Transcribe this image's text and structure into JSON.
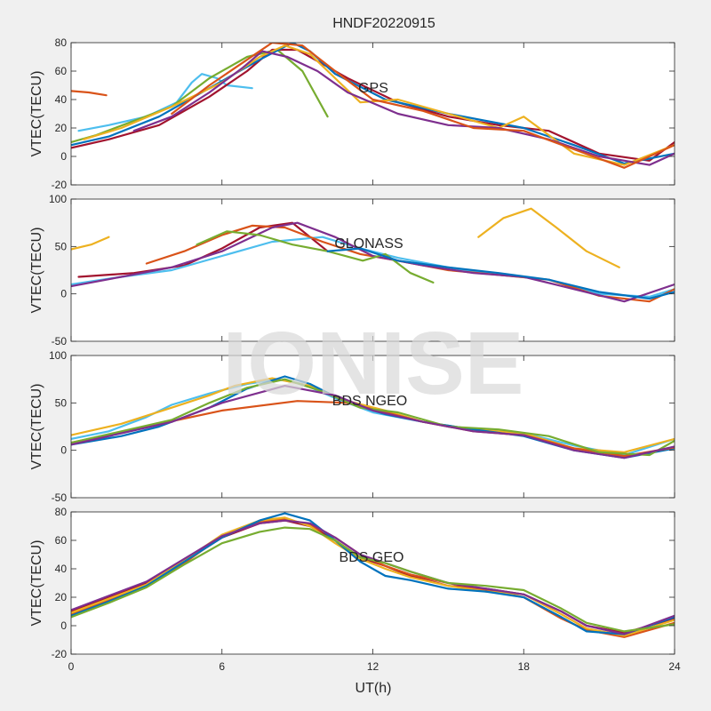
{
  "figure": {
    "title": "HNDF20220915",
    "xlabel": "UT(h)",
    "watermark": "IONISE",
    "background_color": "#f0f0f0",
    "axes_color": "#ffffff",
    "series_colors": [
      "#0072BD",
      "#D95319",
      "#EDB120",
      "#7E2F8E",
      "#77AC30",
      "#4DBEEE",
      "#A2142F"
    ]
  },
  "chart_data": [
    {
      "type": "line",
      "panel_label": "GPS",
      "ylabel": "VTEC(TECU)",
      "xlim": [
        0,
        24
      ],
      "ylim": [
        -20,
        80
      ],
      "xticks": [
        0,
        6,
        12,
        18,
        24
      ],
      "yticks": [
        -20,
        0,
        20,
        40,
        60,
        80
      ],
      "show_xtick_labels": false,
      "series": [
        {
          "color": "#D95319",
          "x": [
            0,
            0.7,
            1.4
          ],
          "y": [
            46,
            45,
            43
          ]
        },
        {
          "color": "#4DBEEE",
          "x": [
            0.3,
            1.5,
            3,
            4.2,
            4.8,
            5.2,
            5.8,
            6.2,
            7.2
          ],
          "y": [
            18,
            22,
            28,
            38,
            52,
            58,
            55,
            50,
            48
          ]
        },
        {
          "color": "#77AC30",
          "x": [
            0,
            1,
            2.5,
            4,
            5.5,
            7,
            8.2,
            9.2,
            10.2
          ],
          "y": [
            10,
            15,
            25,
            35,
            55,
            70,
            75,
            60,
            28
          ]
        },
        {
          "color": "#A2142F",
          "x": [
            0,
            1.5,
            3.5,
            5.5,
            7,
            8,
            9,
            11,
            13,
            15,
            17,
            19,
            21,
            23,
            24
          ],
          "y": [
            6,
            12,
            22,
            42,
            60,
            75,
            75,
            55,
            38,
            28,
            22,
            18,
            2,
            -3,
            10
          ]
        },
        {
          "color": "#0072BD",
          "x": [
            0,
            1.5,
            3.5,
            5.5,
            7.5,
            8.8,
            9.5,
            10.5,
            12.5,
            15,
            18,
            20,
            22,
            24
          ],
          "y": [
            8,
            14,
            28,
            48,
            68,
            80,
            74,
            58,
            40,
            30,
            20,
            8,
            -5,
            2
          ]
        },
        {
          "color": "#EDB120",
          "x": [
            0.5,
            2,
            4,
            6,
            7.5,
            8.5,
            9.5,
            10.5,
            11.5,
            13,
            15,
            17,
            18,
            20,
            22,
            24
          ],
          "y": [
            12,
            20,
            35,
            52,
            70,
            78,
            72,
            55,
            38,
            40,
            30,
            20,
            28,
            2,
            -6,
            8
          ]
        },
        {
          "color": "#7E2F8E",
          "x": [
            2.5,
            4,
            5.5,
            6.8,
            7.6,
            8.6,
            9.8,
            11,
            13,
            15,
            17,
            19,
            21,
            23,
            24
          ],
          "y": [
            18,
            28,
            45,
            62,
            74,
            70,
            60,
            45,
            30,
            22,
            20,
            12,
            0,
            -6,
            2
          ]
        },
        {
          "color": "#D95319",
          "x": [
            4,
            5.5,
            7,
            8,
            9.2,
            10.5,
            12,
            14,
            16,
            18,
            20,
            22,
            24
          ],
          "y": [
            30,
            50,
            68,
            80,
            78,
            60,
            40,
            32,
            20,
            18,
            5,
            -8,
            8
          ]
        }
      ]
    },
    {
      "type": "line",
      "panel_label": "GLONASS",
      "ylabel": "VTEC(TECU)",
      "xlim": [
        0,
        24
      ],
      "ylim": [
        -50,
        100
      ],
      "xticks": [
        0,
        6,
        12,
        18,
        24
      ],
      "yticks": [
        -50,
        0,
        50,
        100
      ],
      "show_xtick_labels": false,
      "series": [
        {
          "color": "#EDB120",
          "x": [
            0,
            0.8,
            1.5
          ],
          "y": [
            47,
            52,
            60
          ]
        },
        {
          "color": "#EDB120",
          "x": [
            16.2,
            17.2,
            18.3,
            19.3,
            20.5,
            21.8
          ],
          "y": [
            60,
            80,
            90,
            70,
            45,
            28
          ]
        },
        {
          "color": "#A2142F",
          "x": [
            0.3,
            2.5,
            4.5,
            6,
            7.5,
            8.8,
            10.2
          ],
          "y": [
            18,
            22,
            30,
            48,
            70,
            75,
            45
          ]
        },
        {
          "color": "#4DBEEE",
          "x": [
            0,
            2,
            4,
            6,
            8,
            10,
            11.5,
            13,
            15,
            17,
            19,
            21,
            23,
            24
          ],
          "y": [
            10,
            18,
            25,
            40,
            55,
            60,
            48,
            38,
            28,
            20,
            15,
            0,
            -3,
            5
          ]
        },
        {
          "color": "#D95319",
          "x": [
            3,
            4.5,
            6,
            7.2,
            8.5,
            10,
            11.5,
            13,
            15,
            17,
            19,
            21,
            23,
            24
          ],
          "y": [
            32,
            45,
            62,
            72,
            70,
            55,
            42,
            35,
            25,
            20,
            15,
            -2,
            -8,
            5
          ]
        },
        {
          "color": "#7E2F8E",
          "x": [
            0,
            2,
            4,
            6,
            8,
            9,
            10.5,
            12,
            14,
            16,
            18,
            20,
            22,
            24
          ],
          "y": [
            8,
            18,
            28,
            45,
            70,
            75,
            60,
            40,
            30,
            22,
            18,
            5,
            -8,
            10
          ]
        },
        {
          "color": "#77AC30",
          "x": [
            5,
            6.2,
            7.5,
            8.8,
            10.2,
            11.6,
            12.5,
            13.5,
            14.4
          ],
          "y": [
            52,
            66,
            62,
            52,
            45,
            35,
            42,
            22,
            12
          ]
        },
        {
          "color": "#0072BD",
          "x": [
            10.2,
            11.5,
            13,
            15,
            17,
            19,
            21,
            23,
            24
          ],
          "y": [
            45,
            48,
            35,
            28,
            22,
            15,
            2,
            -5,
            2
          ]
        }
      ]
    },
    {
      "type": "line",
      "panel_label": "BDS NGEO",
      "ylabel": "VTEC(TECU)",
      "xlim": [
        0,
        24
      ],
      "ylim": [
        -50,
        100
      ],
      "xticks": [
        0,
        6,
        12,
        18,
        24
      ],
      "yticks": [
        -50,
        0,
        50,
        100
      ],
      "show_xtick_labels": false,
      "series": [
        {
          "color": "#4DBEEE",
          "x": [
            0,
            1.5,
            3,
            4,
            5.5,
            7,
            8.2,
            9.2,
            10.5,
            12,
            14,
            16,
            18,
            20,
            22,
            24
          ],
          "y": [
            12,
            20,
            35,
            48,
            60,
            70,
            75,
            70,
            55,
            40,
            30,
            22,
            18,
            5,
            -5,
            12
          ]
        },
        {
          "color": "#EDB120",
          "x": [
            0,
            2,
            4,
            5.5,
            6.5,
            8,
            9.5,
            11,
            12.5,
            14,
            16,
            18,
            20,
            22,
            24
          ],
          "y": [
            16,
            28,
            45,
            58,
            68,
            76,
            68,
            52,
            42,
            30,
            22,
            18,
            2,
            -2,
            12
          ]
        },
        {
          "color": "#0072BD",
          "x": [
            0,
            2,
            3.5,
            5.5,
            7,
            8.5,
            9.5,
            11,
            12.5,
            14,
            16,
            18,
            20,
            22,
            24
          ],
          "y": [
            6,
            15,
            25,
            45,
            65,
            78,
            70,
            50,
            38,
            30,
            22,
            15,
            0,
            -8,
            2
          ]
        },
        {
          "color": "#D95319",
          "x": [
            0,
            3,
            6,
            9,
            11,
            12.5,
            14,
            16,
            18,
            20,
            22,
            24
          ],
          "y": [
            8,
            25,
            42,
            52,
            50,
            40,
            30,
            20,
            16,
            2,
            -6,
            3
          ]
        },
        {
          "color": "#77AC30",
          "x": [
            0,
            2,
            4,
            5.5,
            7,
            8.5,
            10,
            11.5,
            13,
            15,
            17,
            19,
            21,
            23,
            24
          ],
          "y": [
            8,
            20,
            32,
            50,
            66,
            75,
            62,
            45,
            40,
            25,
            22,
            15,
            -2,
            -5,
            10
          ]
        },
        {
          "color": "#7E2F8E",
          "x": [
            0,
            2,
            4,
            6,
            8.5,
            10.5,
            12,
            14,
            16,
            18,
            20,
            22,
            24
          ],
          "y": [
            6,
            18,
            30,
            50,
            68,
            58,
            42,
            30,
            20,
            16,
            0,
            -8,
            4
          ]
        }
      ]
    },
    {
      "type": "line",
      "panel_label": "BDS GEO",
      "ylabel": "VTEC(TECU)",
      "xlim": [
        0,
        24
      ],
      "ylim": [
        -20,
        80
      ],
      "xticks": [
        0,
        6,
        12,
        18,
        24
      ],
      "yticks": [
        -20,
        0,
        20,
        40,
        60,
        80
      ],
      "xtick_labels": [
        "0",
        "6",
        "12",
        "18",
        "24"
      ],
      "series": [
        {
          "color": "#A2142F",
          "x": [
            0,
            1.5,
            3,
            4.5,
            6,
            7.5,
            8.5,
            9.5,
            10.5,
            11.5,
            12.5,
            13.5,
            15,
            16.5,
            18,
            19.5,
            20.5,
            22,
            24
          ],
          "y": [
            10,
            20,
            30,
            45,
            62,
            72,
            74,
            70,
            60,
            48,
            42,
            35,
            28,
            26,
            22,
            10,
            0,
            -5,
            5
          ]
        },
        {
          "color": "#D95319",
          "x": [
            0,
            1.5,
            3,
            4.5,
            6,
            7.5,
            8.5,
            9.5,
            10.5,
            11.5,
            12.5,
            13.5,
            15,
            16.5,
            18,
            19.5,
            20.5,
            22,
            24
          ],
          "y": [
            8,
            18,
            28,
            44,
            63,
            73,
            75,
            71,
            62,
            50,
            42,
            36,
            30,
            25,
            20,
            5,
            -3,
            -8,
            2
          ]
        },
        {
          "color": "#EDB120",
          "x": [
            0,
            1.5,
            3,
            4.5,
            6,
            7.5,
            8.5,
            9.5,
            10.5,
            11.5,
            12.5,
            13.5,
            15,
            16.5,
            18,
            19.5,
            20.5,
            22,
            24
          ],
          "y": [
            9,
            19,
            29,
            46,
            64,
            74,
            76,
            70,
            58,
            47,
            40,
            34,
            28,
            24,
            22,
            8,
            -2,
            -7,
            4
          ]
        },
        {
          "color": "#0072BD",
          "x": [
            0,
            1.5,
            3,
            4.5,
            6,
            7.5,
            8.5,
            9.5,
            10.5,
            11.5,
            12.5,
            13.5,
            15,
            16.5,
            18,
            19.5,
            20.5,
            22,
            24
          ],
          "y": [
            7,
            17,
            28,
            45,
            62,
            74,
            79,
            74,
            60,
            45,
            35,
            32,
            26,
            24,
            20,
            6,
            -4,
            -6,
            6
          ]
        },
        {
          "color": "#7E2F8E",
          "x": [
            0,
            1.5,
            3,
            4.5,
            6,
            7.5,
            8.5,
            9.5,
            10.5,
            11.5,
            12.5,
            13.5,
            15,
            16.5,
            18,
            19.5,
            20.5,
            22,
            24
          ],
          "y": [
            11,
            21,
            31,
            47,
            63,
            72,
            74,
            72,
            62,
            50,
            44,
            38,
            30,
            26,
            22,
            10,
            0,
            -6,
            7
          ]
        },
        {
          "color": "#77AC30",
          "x": [
            0,
            1.5,
            3,
            4.5,
            6,
            7.5,
            8.5,
            9.5,
            10.5,
            11.5,
            12.5,
            13.5,
            15,
            16.5,
            18,
            19.5,
            20.5,
            22,
            24
          ],
          "y": [
            6,
            16,
            27,
            43,
            58,
            66,
            69,
            68,
            60,
            48,
            44,
            38,
            30,
            28,
            25,
            12,
            2,
            -4,
            1
          ]
        }
      ]
    }
  ]
}
